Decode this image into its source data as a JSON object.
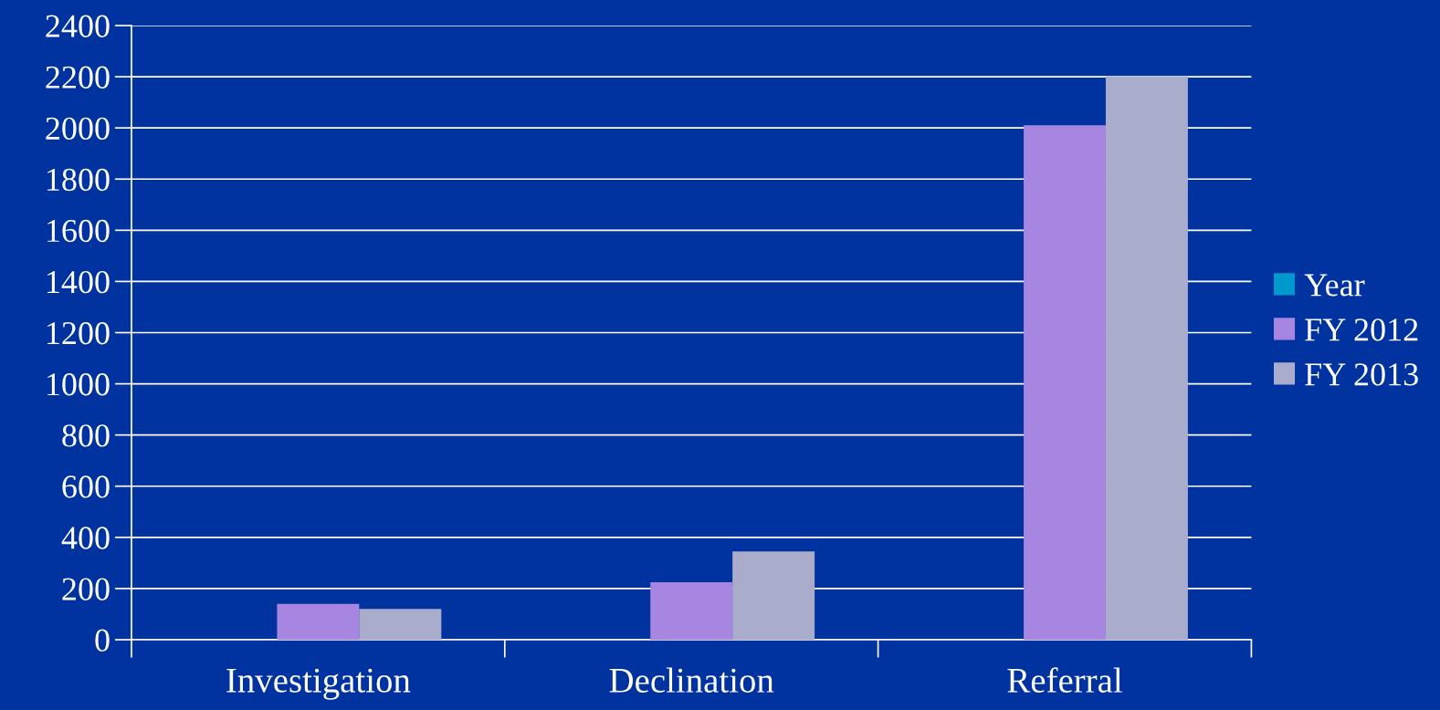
{
  "chart_data": {
    "type": "bar",
    "categories": [
      "Investigation",
      "Declination",
      "Referral"
    ],
    "series": [
      {
        "name": "Year",
        "color": "#0099cc",
        "values": [
          null,
          null,
          null
        ]
      },
      {
        "name": "FY 2012",
        "color": "#a686e0",
        "values": [
          140,
          225,
          2010
        ]
      },
      {
        "name": "FY 2013",
        "color": "#aaaccc",
        "values": [
          120,
          345,
          2200
        ]
      }
    ],
    "ylim": [
      0,
      2400
    ],
    "yticks": [
      0,
      200,
      400,
      600,
      800,
      1000,
      1200,
      1400,
      1600,
      1800,
      2000,
      2200,
      2400
    ],
    "grid": "y",
    "legend": "right"
  }
}
